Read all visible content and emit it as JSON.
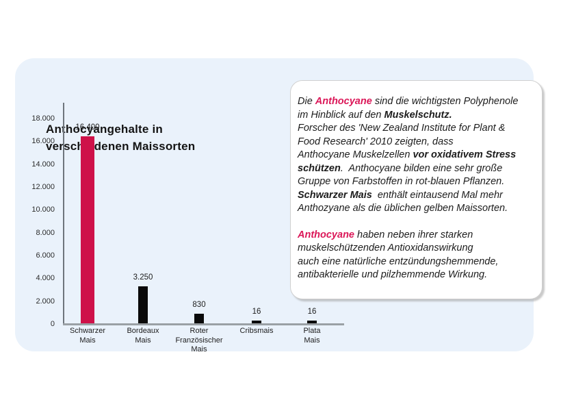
{
  "colors": {
    "accent_text": "#DB1758",
    "bar_pink": "#CE1149",
    "bar_black": "#0a0a0a",
    "panel_bg": "#EAF2FB",
    "axis_baseline": "#9aa0a5",
    "axis_vertical": "#6e757c",
    "text_dark": "#1c1c1c"
  },
  "title": {
    "line1": "Anthocyangehalte in",
    "line2": "verschiedenen Maissorten"
  },
  "chart_data": {
    "type": "bar",
    "title": "Anthocyangehalte in verschiedenen Maissorten",
    "categories": [
      [
        "Schwarzer",
        "Mais"
      ],
      [
        "Bordeaux",
        "Mais"
      ],
      [
        "Roter",
        "Französischer",
        "Mais"
      ],
      [
        "Cribsmais"
      ],
      [
        "Plata",
        "Mais"
      ]
    ],
    "values": [
      16400,
      3250,
      830,
      16,
      16
    ],
    "value_labels": [
      "16.400",
      "3.250",
      "830",
      "16",
      "16"
    ],
    "bar_colors": [
      "#CE1149",
      "#0a0a0a",
      "#0a0a0a",
      "#0a0a0a",
      "#0a0a0a"
    ],
    "xlabel": "",
    "ylabel": "",
    "ylim": [
      0,
      18000
    ],
    "ytick_step": 2000,
    "ytick_labels": [
      "0",
      "2.000",
      "4.000",
      "6.000",
      "8.000",
      "10.000",
      "12.000",
      "14.000",
      "16.000",
      "18.000"
    ],
    "grid": false,
    "legend": false
  },
  "textbox": {
    "paragraphs": [
      {
        "lines": [
          [
            {
              "t": "Die "
            },
            {
              "t": "Anthocyane",
              "b": 1,
              "p": 1
            },
            {
              "t": " sind die wichtigsten Polyphenole"
            }
          ],
          [
            {
              "t": "im Hinblick auf den "
            },
            {
              "t": "Muskelschutz.",
              "b": 1
            }
          ],
          [
            {
              "t": "Forscher des 'New Zealand Institute for Plant &"
            }
          ],
          [
            {
              "t": "Food Research' 2010 zeigten, dass"
            }
          ],
          [
            {
              "t": "Anthocyane Muskelzellen "
            },
            {
              "t": "vor oxidativem Stress",
              "b": 1
            }
          ],
          [
            {
              "t": "schützen",
              "b": 1
            },
            {
              "t": ".  Anthocyane bilden eine sehr große"
            }
          ],
          [
            {
              "t": "Gruppe von Farbstoffen in rot-blauen Pflanzen."
            }
          ],
          [
            {
              "t": "Schwarzer Mais",
              "b": 1
            },
            {
              "t": "  enthält eintausend Mal mehr"
            }
          ],
          [
            {
              "t": "Anthozyane als die üblichen gelben Maissorten."
            }
          ]
        ]
      },
      {
        "lines": [
          [
            {
              "t": "Anthocyane",
              "b": 1,
              "p": 1
            },
            {
              "t": " haben neben ihrer starken"
            }
          ],
          [
            {
              "t": "muskelschützenden Antioxidanswirkung"
            }
          ],
          [
            {
              "t": "auch eine natürliche entzündungshemmende,"
            }
          ],
          [
            {
              "t": "antibakterielle und pilzhemmende Wirkung."
            }
          ]
        ]
      }
    ]
  }
}
